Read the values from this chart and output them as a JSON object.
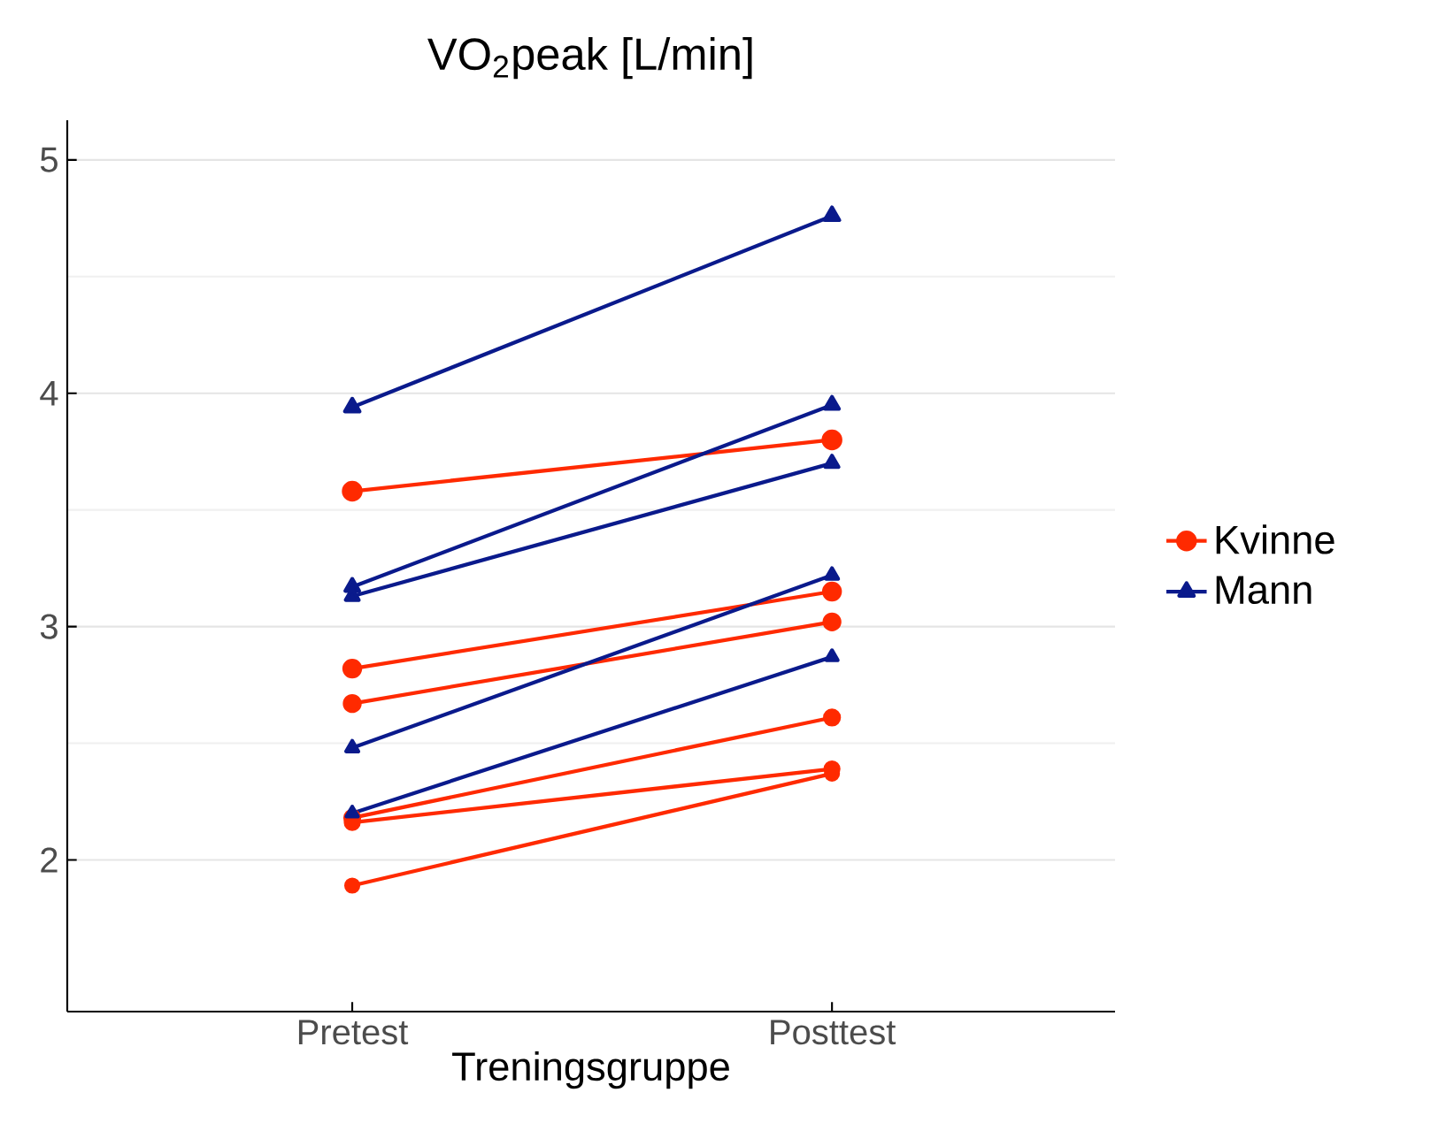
{
  "chart_data": {
    "type": "line",
    "title": "VO$_{2}$peak [L/min]",
    "xlabel": "Treningsgruppe",
    "categories": [
      "Pretest",
      "Posttest"
    ],
    "series": [
      {
        "name": "Kvinne",
        "color": "#ff2a00",
        "marker": "circle",
        "values": [
          3.58,
          3.8
        ]
      },
      {
        "color": "#ff2a00",
        "marker": "circle",
        "values": [
          2.82,
          3.15
        ]
      },
      {
        "color": "#ff2a00",
        "marker": "circle",
        "values": [
          2.67,
          3.02
        ]
      },
      {
        "color": "#ff2a00",
        "marker": "circle",
        "values": [
          2.18,
          2.61
        ]
      },
      {
        "color": "#ff2a00",
        "marker": "circle",
        "values": [
          2.16,
          2.39
        ]
      },
      {
        "color": "#ff2a00",
        "marker": "circle",
        "values": [
          1.89,
          2.37
        ]
      },
      {
        "name": "Mann",
        "color": "#0a1a8c",
        "marker": "triangle",
        "values": [
          3.94,
          4.76
        ]
      },
      {
        "color": "#0a1a8c",
        "marker": "triangle",
        "values": [
          3.17,
          3.95
        ]
      },
      {
        "color": "#0a1a8c",
        "marker": "triangle",
        "values": [
          3.13,
          3.7
        ]
      },
      {
        "color": "#0a1a8c",
        "marker": "triangle",
        "values": [
          2.48,
          3.22
        ]
      },
      {
        "color": "#0a1a8c",
        "marker": "triangle",
        "values": [
          2.2,
          2.87
        ]
      }
    ],
    "ylim": [
      1.35,
      5.17
    ],
    "yticks": [
      2,
      3,
      4,
      5
    ],
    "grid": "y",
    "legend": "right"
  }
}
